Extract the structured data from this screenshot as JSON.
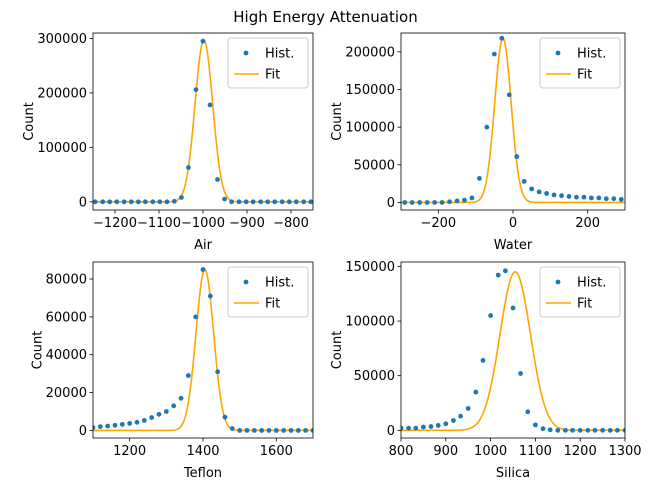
{
  "figure": {
    "suptitle": "High Energy Attenuation"
  },
  "colors": {
    "hist": "#1f77b4",
    "fit": "#ffa500",
    "axes": "#000000",
    "legend_border": "#cccccc"
  },
  "chart_data": [
    {
      "type": "scatter",
      "xlabel": "Air",
      "ylabel": "Count",
      "xlim": [
        -1250,
        -750
      ],
      "ylim": [
        -15000,
        310000
      ],
      "xticks": [
        -1200,
        -1100,
        -1000,
        -900,
        -800
      ],
      "xtick_labels": [
        "−1200",
        "−1100",
        "−1000",
        "−900",
        "−800"
      ],
      "yticks": [
        0,
        100000,
        200000,
        300000
      ],
      "ytick_labels": [
        "0",
        "100000",
        "200000",
        "300000"
      ],
      "legend": {
        "placement": "top-right",
        "entries": [
          "Hist.",
          "Fit"
        ]
      },
      "series": [
        {
          "name": "Hist.",
          "kind": "points",
          "x": [
            -1245,
            -1228,
            -1212,
            -1196,
            -1179,
            -1163,
            -1147,
            -1131,
            -1114,
            -1098,
            -1082,
            -1065,
            -1049,
            -1033,
            -1016,
            -1000,
            -984,
            -967,
            -951,
            -935,
            -918,
            -902,
            -886,
            -869,
            -853,
            -837,
            -820,
            -804,
            -788,
            -771,
            -755
          ],
          "y": [
            0,
            0,
            0,
            0,
            0,
            0,
            0,
            0,
            0,
            0,
            0,
            1000,
            8000,
            63000,
            206000,
            295000,
            178000,
            41000,
            5000,
            0,
            0,
            0,
            0,
            0,
            0,
            0,
            0,
            0,
            0,
            0,
            0
          ]
        },
        {
          "name": "Fit",
          "kind": "gaussian",
          "amplitude": 297000,
          "center": -998,
          "sigma": 20,
          "xrange": [
            -1250,
            -750
          ]
        }
      ]
    },
    {
      "type": "scatter",
      "xlabel": "Water",
      "ylabel": "Count",
      "xlim": [
        -300,
        300
      ],
      "ylim": [
        -10000,
        225000
      ],
      "xticks": [
        -200,
        0,
        200
      ],
      "xtick_labels": [
        "−200",
        "0",
        "200"
      ],
      "yticks": [
        0,
        50000,
        100000,
        150000,
        200000
      ],
      "ytick_labels": [
        "0",
        "50000",
        "100000",
        "150000",
        "200000"
      ],
      "legend": {
        "placement": "top-right",
        "entries": [
          "Hist.",
          "Fit"
        ]
      },
      "series": [
        {
          "name": "Hist.",
          "kind": "points",
          "x": [
            -290,
            -270,
            -250,
            -230,
            -210,
            -190,
            -170,
            -150,
            -130,
            -110,
            -90,
            -70,
            -50,
            -30,
            -10,
            10,
            30,
            50,
            70,
            90,
            110,
            130,
            150,
            170,
            190,
            210,
            230,
            250,
            270,
            290
          ],
          "y": [
            0,
            0,
            0,
            0,
            0,
            0,
            1000,
            2000,
            3000,
            6000,
            32000,
            100000,
            197000,
            218000,
            143000,
            61000,
            28000,
            18000,
            14000,
            12000,
            10000,
            9000,
            8000,
            7000,
            7000,
            6000,
            6000,
            5000,
            5000,
            4000
          ]
        },
        {
          "name": "Fit",
          "kind": "gaussian",
          "amplitude": 218000,
          "center": -27,
          "sigma": 22,
          "xrange": [
            -300,
            300
          ]
        }
      ]
    },
    {
      "type": "scatter",
      "xlabel": "Teflon",
      "ylabel": "Count",
      "xlim": [
        1100,
        1700
      ],
      "ylim": [
        -4000,
        89000
      ],
      "xticks": [
        1200,
        1400,
        1600
      ],
      "xtick_labels": [
        "1200",
        "1400",
        "1600"
      ],
      "yticks": [
        0,
        20000,
        40000,
        60000,
        80000
      ],
      "ytick_labels": [
        "0",
        "20000",
        "40000",
        "60000",
        "80000"
      ],
      "legend": {
        "placement": "top-right",
        "entries": [
          "Hist.",
          "Fit"
        ]
      },
      "series": [
        {
          "name": "Hist.",
          "kind": "points",
          "x": [
            1100,
            1120,
            1140,
            1160,
            1180,
            1200,
            1220,
            1240,
            1260,
            1280,
            1300,
            1320,
            1340,
            1360,
            1380,
            1400,
            1420,
            1440,
            1460,
            1480,
            1500,
            1520,
            1540,
            1560,
            1580,
            1600,
            1620,
            1640,
            1660,
            1680,
            1700
          ],
          "y": [
            1500,
            2000,
            2300,
            2700,
            3200,
            3700,
            4300,
            5300,
            6800,
            8500,
            10000,
            13000,
            17000,
            29000,
            60000,
            85000,
            71000,
            31000,
            7000,
            1000,
            0,
            0,
            0,
            0,
            0,
            0,
            0,
            0,
            0,
            0,
            0
          ]
        },
        {
          "name": "Fit",
          "kind": "gaussian",
          "amplitude": 85000,
          "center": 1405,
          "sigma": 24,
          "xrange": [
            1100,
            1700
          ]
        }
      ]
    },
    {
      "type": "scatter",
      "xlabel": "Silica",
      "ylabel": "Count",
      "xlim": [
        800,
        1300
      ],
      "ylim": [
        -7000,
        154000
      ],
      "xticks": [
        800,
        900,
        1000,
        1100,
        1200,
        1300
      ],
      "xtick_labels": [
        "800",
        "900",
        "1000",
        "1100",
        "1200",
        "1300"
      ],
      "yticks": [
        0,
        50000,
        100000,
        150000
      ],
      "ytick_labels": [
        "0",
        "50000",
        "100000",
        "150000"
      ],
      "legend": {
        "placement": "top-right",
        "entries": [
          "Hist.",
          "Fit"
        ]
      },
      "series": [
        {
          "name": "Hist.",
          "kind": "points",
          "x": [
            800,
            817,
            833,
            850,
            867,
            883,
            900,
            917,
            933,
            950,
            967,
            983,
            1000,
            1017,
            1033,
            1050,
            1067,
            1083,
            1100,
            1117,
            1133,
            1150,
            1167,
            1183,
            1200,
            1217,
            1233,
            1250,
            1267,
            1283,
            1300
          ],
          "y": [
            2000,
            2000,
            2000,
            3000,
            3500,
            4500,
            6000,
            9000,
            13000,
            20000,
            35000,
            64000,
            105000,
            142000,
            146000,
            112000,
            52000,
            17000,
            5000,
            1500,
            500,
            0,
            0,
            0,
            0,
            0,
            0,
            0,
            0,
            0,
            0
          ]
        },
        {
          "name": "Fit",
          "kind": "gaussian",
          "amplitude": 145000,
          "center": 1055,
          "sigma": 34,
          "xrange": [
            800,
            1300
          ]
        }
      ]
    }
  ]
}
